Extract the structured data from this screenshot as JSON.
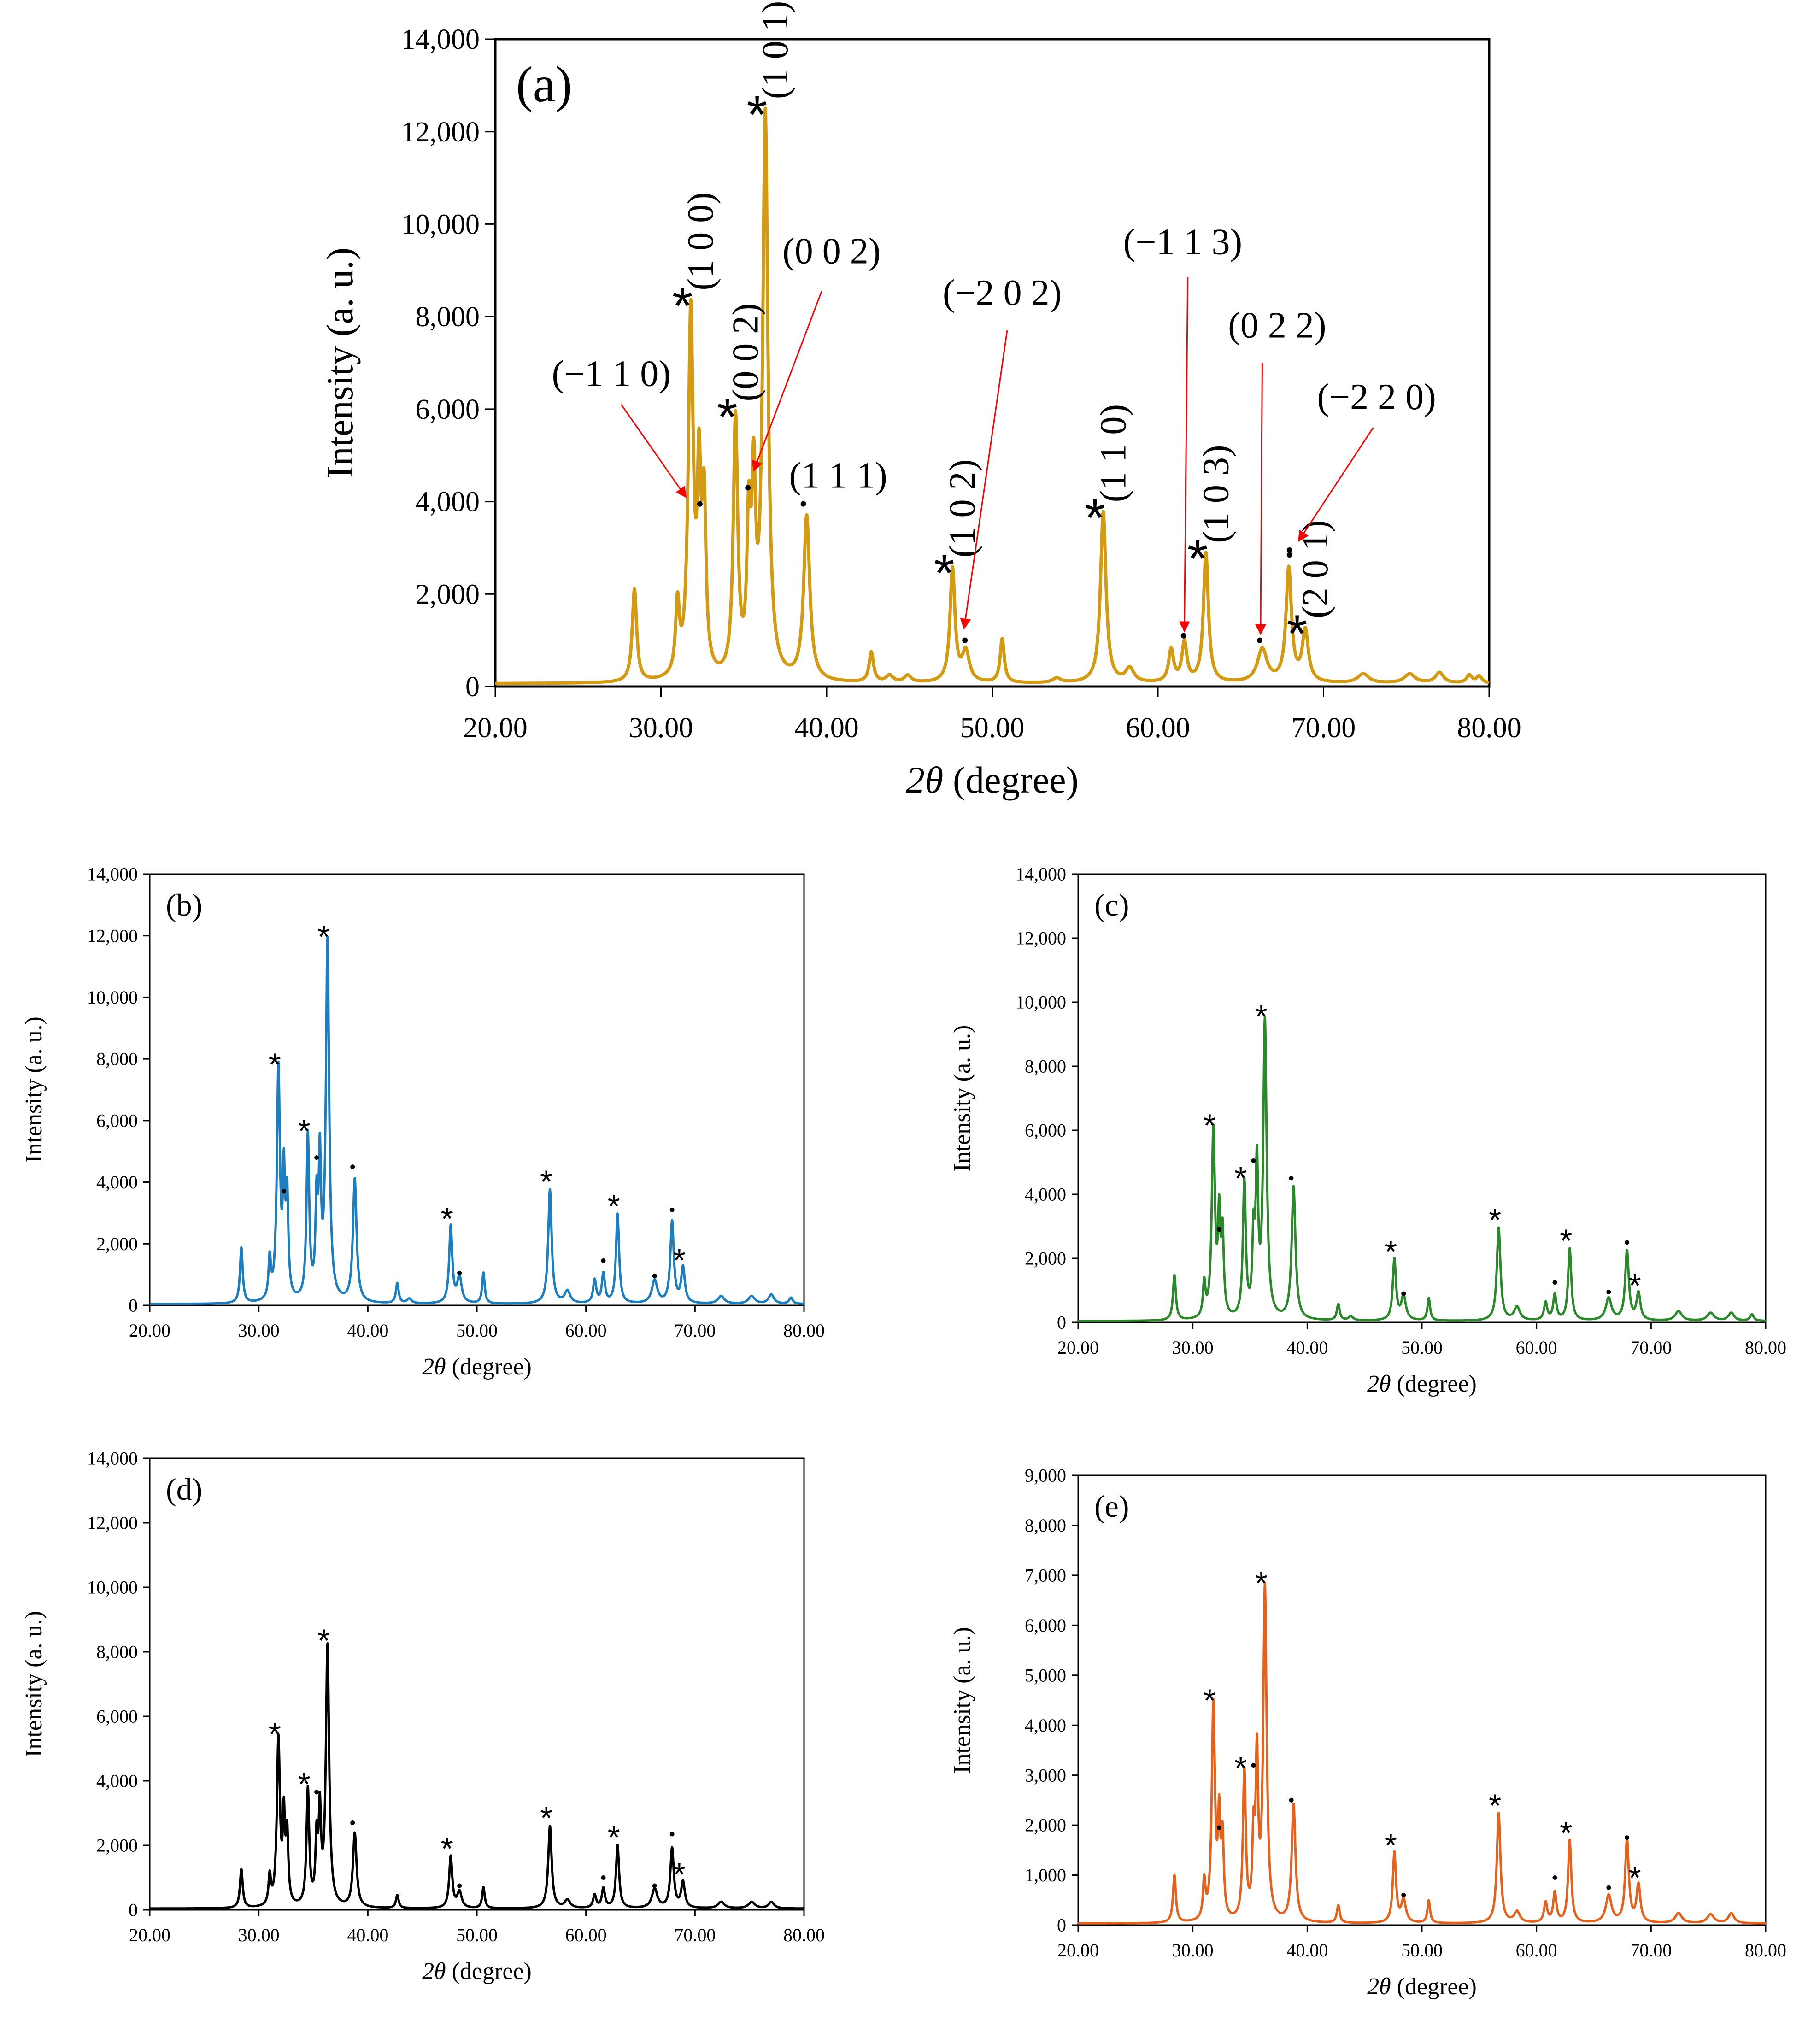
{
  "figure": {
    "x_label_var": "2θ",
    "x_label_unit": " (degree)"
  },
  "chart_data": [
    {
      "id": "a",
      "type": "line",
      "panel_label": "(a)",
      "color": "#D49A12",
      "xlabel": "2θ (degree)",
      "ylabel": "Intensity (a. u.)",
      "xlim": [
        20,
        80
      ],
      "ylim": [
        0,
        14000
      ],
      "xticks": [
        "20.00",
        "30.00",
        "40.00",
        "50.00",
        "60.00",
        "70.00",
        "80.00"
      ],
      "yticks": [
        "0",
        "2,000",
        "4,000",
        "6,000",
        "8,000",
        "10,000",
        "12,000",
        "14,000"
      ],
      "baseline": 60,
      "peaks": [
        [
          28.4,
          2000,
          0.16
        ],
        [
          31.0,
          1500,
          0.14
        ],
        [
          31.8,
          7850,
          0.18
        ],
        [
          32.3,
          3900,
          0.13
        ],
        [
          32.6,
          3550,
          0.14
        ],
        [
          34.5,
          5550,
          0.16
        ],
        [
          35.3,
          3000,
          0.13
        ],
        [
          35.6,
          3850,
          0.14
        ],
        [
          36.3,
          12150,
          0.19
        ],
        [
          38.8,
          3550,
          0.22
        ],
        [
          42.7,
          650,
          0.16
        ],
        [
          43.8,
          150,
          0.25
        ],
        [
          44.9,
          150,
          0.25
        ],
        [
          47.6,
          2450,
          0.18
        ],
        [
          48.4,
          650,
          0.26
        ],
        [
          50.6,
          950,
          0.15
        ],
        [
          53.9,
          100,
          0.3
        ],
        [
          56.7,
          3700,
          0.2
        ],
        [
          58.3,
          300,
          0.3
        ],
        [
          60.8,
          700,
          0.18
        ],
        [
          61.6,
          850,
          0.18
        ],
        [
          62.9,
          2800,
          0.18
        ],
        [
          66.3,
          720,
          0.35
        ],
        [
          67.9,
          2450,
          0.2
        ],
        [
          68.9,
          1100,
          0.22
        ],
        [
          72.4,
          200,
          0.4
        ],
        [
          75.2,
          200,
          0.4
        ],
        [
          77.0,
          230,
          0.3
        ],
        [
          78.8,
          170,
          0.2
        ],
        [
          79.4,
          150,
          0.2
        ]
      ],
      "stars": [
        [
          31.8,
          "(1 0 0)"
        ],
        [
          34.5,
          "(0 0 2)"
        ],
        [
          36.3,
          "(1 0 1)"
        ],
        [
          47.6,
          "(1 0 2)"
        ],
        [
          56.7,
          "(1 1 0)"
        ],
        [
          62.9,
          "(1 0 3)"
        ],
        [
          68.9,
          "(2 0 1)"
        ]
      ],
      "dots": [
        [
          32.35,
          3950
        ],
        [
          35.25,
          4300
        ],
        [
          38.6,
          3950
        ],
        [
          48.35,
          1000
        ],
        [
          61.55,
          1100
        ],
        [
          66.15,
          1000
        ],
        [
          67.95,
          2950
        ],
        [
          67.95,
          2850
        ]
      ],
      "labels_upright": [
        {
          "text": "(−1 1 0)",
          "x": 27.0,
          "y": 6500
        },
        {
          "text": "(0 0 2)",
          "x": 40.3,
          "y": 9150
        },
        {
          "text": "(1 1 1)",
          "x": 40.7,
          "y": 4300
        },
        {
          "text": "(−2 0 2)",
          "x": 50.6,
          "y": 8250
        },
        {
          "text": "(−1 1 3)",
          "x": 61.5,
          "y": 9350
        },
        {
          "text": "(0 2 2)",
          "x": 67.2,
          "y": 7550
        },
        {
          "text": "(−2 2 0)",
          "x": 73.2,
          "y": 6000
        }
      ],
      "arrows": [
        [
          27.6,
          6100,
          31.5,
          4100
        ],
        [
          39.7,
          8550,
          35.6,
          4670
        ],
        [
          50.9,
          7700,
          48.3,
          1260
        ],
        [
          61.8,
          8850,
          61.6,
          1200
        ],
        [
          66.3,
          7000,
          66.2,
          1140
        ],
        [
          73.0,
          5600,
          68.5,
          3150
        ]
      ]
    },
    {
      "id": "b",
      "type": "line",
      "panel_label": "(b)",
      "color": "#1B7EC2",
      "xlabel": "2θ (degree)",
      "ylabel": "Intensity (a. u.)",
      "xlim": [
        20,
        80
      ],
      "ylim": [
        0,
        14000
      ],
      "xticks": [
        "20.00",
        "30.00",
        "40.00",
        "50.00",
        "60.00",
        "70.00",
        "80.00"
      ],
      "yticks": [
        "0",
        "2,000",
        "4,000",
        "6,000",
        "8,000",
        "10,000",
        "12,000",
        "14,000"
      ],
      "baseline": 40,
      "peaks": [
        [
          28.4,
          1800,
          0.15
        ],
        [
          31.0,
          1300,
          0.13
        ],
        [
          31.8,
          7500,
          0.17
        ],
        [
          32.3,
          3700,
          0.12
        ],
        [
          32.6,
          3200,
          0.13
        ],
        [
          34.5,
          5350,
          0.15
        ],
        [
          35.3,
          2900,
          0.12
        ],
        [
          35.6,
          4300,
          0.13
        ],
        [
          36.3,
          11650,
          0.18
        ],
        [
          38.8,
          4000,
          0.2
        ],
        [
          42.7,
          650,
          0.15
        ],
        [
          43.8,
          150,
          0.25
        ],
        [
          47.6,
          2500,
          0.17
        ],
        [
          48.4,
          850,
          0.24
        ],
        [
          50.6,
          1000,
          0.14
        ],
        [
          56.7,
          3700,
          0.19
        ],
        [
          58.3,
          400,
          0.3
        ],
        [
          60.8,
          750,
          0.17
        ],
        [
          61.6,
          950,
          0.17
        ],
        [
          62.9,
          2900,
          0.17
        ],
        [
          66.3,
          750,
          0.3
        ],
        [
          67.9,
          2650,
          0.19
        ],
        [
          68.9,
          1150,
          0.2
        ],
        [
          72.4,
          250,
          0.35
        ],
        [
          75.2,
          250,
          0.35
        ],
        [
          77.0,
          300,
          0.3
        ],
        [
          78.8,
          200,
          0.2
        ]
      ],
      "stars": [
        [
          31.8,
          7500
        ],
        [
          34.5,
          5350
        ],
        [
          36.3,
          11650
        ],
        [
          47.6,
          2500
        ],
        [
          56.7,
          3700
        ],
        [
          62.9,
          2900
        ],
        [
          68.9,
          1150
        ]
      ],
      "dots": [
        [
          32.3,
          3700
        ],
        [
          35.3,
          4800
        ],
        [
          38.6,
          4500
        ],
        [
          48.4,
          1050
        ],
        [
          61.6,
          1450
        ],
        [
          66.3,
          950
        ],
        [
          67.9,
          3100
        ]
      ]
    },
    {
      "id": "c",
      "type": "line",
      "panel_label": "(c)",
      "color": "#2A8A2A",
      "xlabel": "2θ (degree)",
      "ylabel": "Intensity (a. u.)",
      "xlim": [
        20,
        80
      ],
      "ylim": [
        0,
        14000
      ],
      "xticks": [
        "20.00",
        "30.00",
        "40.00",
        "50.00",
        "60.00",
        "70.00",
        "80.00"
      ],
      "yticks": [
        "0",
        "2,000",
        "4,000",
        "6,000",
        "8,000",
        "10,000",
        "12,000",
        "14,000"
      ],
      "baseline": 40,
      "peaks": [
        [
          28.4,
          1400,
          0.15
        ],
        [
          31.0,
          1050,
          0.13
        ],
        [
          31.8,
          5850,
          0.17
        ],
        [
          32.3,
          2900,
          0.12
        ],
        [
          32.6,
          2500,
          0.13
        ],
        [
          34.5,
          4200,
          0.15
        ],
        [
          35.3,
          2300,
          0.12
        ],
        [
          35.6,
          4500,
          0.13
        ],
        [
          36.3,
          9250,
          0.18
        ],
        [
          38.8,
          4150,
          0.2
        ],
        [
          42.7,
          500,
          0.15
        ],
        [
          43.8,
          120,
          0.25
        ],
        [
          47.6,
          1900,
          0.17
        ],
        [
          48.4,
          750,
          0.24
        ],
        [
          50.6,
          700,
          0.14
        ],
        [
          56.7,
          2900,
          0.19
        ],
        [
          58.3,
          420,
          0.3
        ],
        [
          60.8,
          550,
          0.17
        ],
        [
          61.6,
          800,
          0.17
        ],
        [
          62.9,
          2250,
          0.17
        ],
        [
          66.3,
          700,
          0.3
        ],
        [
          67.9,
          2150,
          0.19
        ],
        [
          68.9,
          850,
          0.2
        ],
        [
          72.4,
          300,
          0.35
        ],
        [
          75.2,
          250,
          0.35
        ],
        [
          77.0,
          250,
          0.3
        ],
        [
          78.8,
          200,
          0.2
        ]
      ],
      "stars": [
        [
          31.8,
          5850
        ],
        [
          34.5,
          4200
        ],
        [
          36.3,
          9250
        ],
        [
          47.6,
          1900
        ],
        [
          56.7,
          2900
        ],
        [
          62.9,
          2250
        ],
        [
          68.9,
          850
        ]
      ],
      "dots": [
        [
          32.3,
          2900
        ],
        [
          35.3,
          5050
        ],
        [
          38.6,
          4500
        ],
        [
          48.4,
          900
        ],
        [
          61.6,
          1250
        ],
        [
          66.3,
          950
        ],
        [
          67.9,
          2500
        ]
      ]
    },
    {
      "id": "d",
      "type": "line",
      "panel_label": "(d)",
      "color": "#000000",
      "xlabel": "2θ (degree)",
      "ylabel": "Intensity (a. u.)",
      "xlim": [
        20,
        80
      ],
      "ylim": [
        0,
        14000
      ],
      "xticks": [
        "20.00",
        "30.00",
        "40.00",
        "50.00",
        "60.00",
        "70.00",
        "80.00"
      ],
      "yticks": [
        "0",
        "2,000",
        "4,000",
        "6,000",
        "8,000",
        "10,000",
        "12,000",
        "14,000"
      ],
      "baseline": 40,
      "peaks": [
        [
          28.4,
          1200,
          0.15
        ],
        [
          31.0,
          900,
          0.13
        ],
        [
          31.8,
          5150,
          0.17
        ],
        [
          32.3,
          2550,
          0.12
        ],
        [
          32.6,
          2100,
          0.13
        ],
        [
          34.5,
          3600,
          0.15
        ],
        [
          35.3,
          1900,
          0.12
        ],
        [
          35.6,
          2750,
          0.13
        ],
        [
          36.3,
          8050,
          0.18
        ],
        [
          38.8,
          2300,
          0.2
        ],
        [
          42.7,
          400,
          0.15
        ],
        [
          47.6,
          1600,
          0.17
        ],
        [
          48.4,
          500,
          0.24
        ],
        [
          50.6,
          650,
          0.14
        ],
        [
          56.7,
          2550,
          0.19
        ],
        [
          58.3,
          250,
          0.3
        ],
        [
          60.8,
          400,
          0.17
        ],
        [
          61.6,
          600,
          0.17
        ],
        [
          62.9,
          1950,
          0.17
        ],
        [
          66.3,
          600,
          0.3
        ],
        [
          67.9,
          1850,
          0.19
        ],
        [
          68.9,
          800,
          0.2
        ],
        [
          72.4,
          200,
          0.35
        ],
        [
          75.2,
          200,
          0.35
        ],
        [
          77.0,
          200,
          0.3
        ]
      ],
      "stars": [
        [
          31.8,
          5150
        ],
        [
          34.5,
          3600
        ],
        [
          36.3,
          8050
        ],
        [
          47.6,
          1600
        ],
        [
          56.7,
          2550
        ],
        [
          62.9,
          1950
        ],
        [
          68.9,
          800
        ]
      ],
      "dots": [
        [
          32.3,
          2550
        ],
        [
          35.3,
          3650
        ],
        [
          38.6,
          2700
        ],
        [
          48.4,
          750
        ],
        [
          61.6,
          1000
        ],
        [
          66.3,
          750
        ],
        [
          67.9,
          2350
        ]
      ]
    },
    {
      "id": "e",
      "type": "line",
      "panel_label": "(e)",
      "color": "#E8611A",
      "xlabel": "2θ (degree)",
      "ylabel": "Intensity (a. u.)",
      "xlim": [
        20,
        80
      ],
      "ylim": [
        0,
        9000
      ],
      "xticks": [
        "20.00",
        "30.00",
        "40.00",
        "50.00",
        "60.00",
        "70.00",
        "80.00"
      ],
      "yticks": [
        "0",
        "1,000",
        "2,000",
        "3,000",
        "4,000",
        "5,000",
        "6,000",
        "7,000",
        "8,000",
        "9,000"
      ],
      "baseline": 30,
      "peaks": [
        [
          28.4,
          950,
          0.15
        ],
        [
          31.0,
          750,
          0.13
        ],
        [
          31.8,
          4300,
          0.17
        ],
        [
          32.3,
          1850,
          0.12
        ],
        [
          32.6,
          1550,
          0.13
        ],
        [
          34.5,
          2950,
          0.15
        ],
        [
          35.3,
          1500,
          0.12
        ],
        [
          35.6,
          3100,
          0.13
        ],
        [
          36.3,
          6650,
          0.18
        ],
        [
          38.8,
          2350,
          0.2
        ],
        [
          42.7,
          350,
          0.15
        ],
        [
          47.6,
          1400,
          0.17
        ],
        [
          48.4,
          450,
          0.24
        ],
        [
          50.6,
          450,
          0.14
        ],
        [
          56.7,
          2200,
          0.19
        ],
        [
          58.3,
          220,
          0.3
        ],
        [
          60.8,
          400,
          0.17
        ],
        [
          61.6,
          600,
          0.17
        ],
        [
          62.9,
          1650,
          0.17
        ],
        [
          66.3,
          550,
          0.3
        ],
        [
          67.9,
          1650,
          0.19
        ],
        [
          68.9,
          750,
          0.2
        ],
        [
          72.4,
          200,
          0.35
        ],
        [
          75.2,
          180,
          0.35
        ],
        [
          77.0,
          200,
          0.3
        ]
      ],
      "stars": [
        [
          31.8,
          4300
        ],
        [
          34.5,
          2950
        ],
        [
          36.3,
          6650
        ],
        [
          47.6,
          1400
        ],
        [
          56.7,
          2200
        ],
        [
          62.9,
          1650
        ],
        [
          68.9,
          750
        ]
      ],
      "dots": [
        [
          32.3,
          1950
        ],
        [
          35.3,
          3200
        ],
        [
          38.6,
          2500
        ],
        [
          48.4,
          600
        ],
        [
          61.6,
          950
        ],
        [
          66.3,
          750
        ],
        [
          67.9,
          1750
        ]
      ]
    }
  ]
}
